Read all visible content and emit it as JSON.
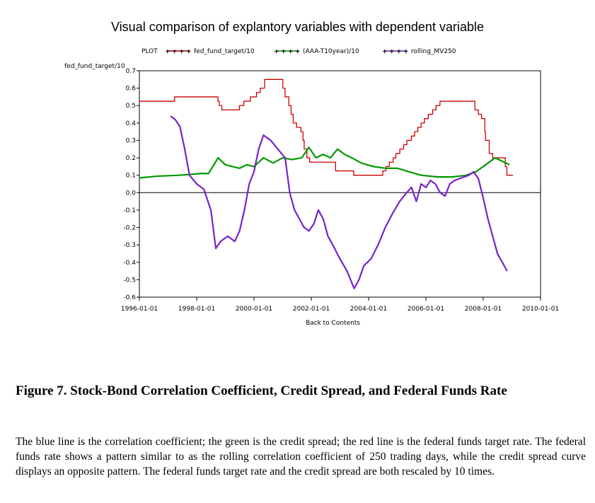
{
  "chart_data": {
    "type": "line",
    "title": "Visual comparison of explantory variables with dependent variable",
    "ylabel": "fed_fund_target/10",
    "xlabel": "Back to Contents",
    "ylim": [
      -0.6,
      0.7
    ],
    "xlim": [
      "1996-01-01",
      "2010-01-01"
    ],
    "y_ticks": [
      "0.7",
      "0.6",
      "0.5",
      "0.4",
      "0.3",
      "0.2",
      "0.1",
      "0.0",
      "-0.1",
      "-0.2",
      "-0.3",
      "-0.4",
      "-0.5",
      "-0.6"
    ],
    "x_ticks": [
      "1996-01-01",
      "1998-01-01",
      "2000-01-01",
      "2002-01-01",
      "2004-01-01",
      "2006-01-01",
      "2008-01-01",
      "2010-01-01"
    ],
    "legend_label": "PLOT",
    "legend_placement": "top",
    "zero_line": true,
    "series": [
      {
        "name": "fed_fund_target/10",
        "color": "#cc0000",
        "x": [
          "1996-01-01",
          "1997-03-25",
          "1998-09-29",
          "1998-10-15",
          "1998-11-17",
          "1999-06-30",
          "1999-08-24",
          "1999-11-16",
          "2000-02-02",
          "2000-03-21",
          "2000-05-16",
          "2001-01-03",
          "2001-01-31",
          "2001-03-20",
          "2001-04-18",
          "2001-05-15",
          "2001-06-27",
          "2001-08-21",
          "2001-09-17",
          "2001-10-02",
          "2001-11-06",
          "2001-12-11",
          "2002-11-06",
          "2003-06-25",
          "2004-06-30",
          "2004-08-10",
          "2004-09-21",
          "2004-11-10",
          "2004-12-14",
          "2005-02-02",
          "2005-03-22",
          "2005-05-03",
          "2005-06-30",
          "2005-08-09",
          "2005-09-20",
          "2005-11-01",
          "2005-12-13",
          "2006-01-31",
          "2006-03-28",
          "2006-05-10",
          "2006-06-29",
          "2007-09-18",
          "2007-10-31",
          "2007-12-11",
          "2008-01-22",
          "2008-01-30",
          "2008-03-18",
          "2008-04-30",
          "2008-10-08",
          "2008-10-29",
          "2008-12-16"
        ],
        "values": [
          0.525,
          0.55,
          0.525,
          0.5,
          0.475,
          0.5,
          0.525,
          0.55,
          0.575,
          0.6,
          0.65,
          0.6,
          0.55,
          0.5,
          0.45,
          0.4,
          0.375,
          0.35,
          0.3,
          0.25,
          0.2,
          0.175,
          0.125,
          0.1,
          0.125,
          0.15,
          0.175,
          0.2,
          0.225,
          0.25,
          0.275,
          0.3,
          0.325,
          0.35,
          0.375,
          0.4,
          0.425,
          0.45,
          0.475,
          0.5,
          0.525,
          0.475,
          0.45,
          0.425,
          0.35,
          0.3,
          0.225,
          0.2,
          0.15,
          0.1,
          0.1
        ]
      },
      {
        "name": "(AAA-T10year)/10",
        "color": "#009900",
        "x": [
          "1996-01-01",
          "1996-09-01",
          "1997-06-01",
          "1998-03-01",
          "1998-06-01",
          "1998-10-01",
          "1999-01-01",
          "1999-04-01",
          "1999-07-01",
          "1999-10-01",
          "2000-01-01",
          "2000-05-01",
          "2000-09-01",
          "2001-01-01",
          "2001-05-01",
          "2001-09-01",
          "2001-12-01",
          "2002-03-01",
          "2002-06-01",
          "2002-09-01",
          "2002-12-01",
          "2003-03-01",
          "2003-06-01",
          "2003-10-01",
          "2004-03-01",
          "2004-08-01",
          "2005-01-01",
          "2005-06-01",
          "2005-11-01",
          "2006-06-01",
          "2006-12-01",
          "2007-03-01",
          "2007-06-01",
          "2007-10-01",
          "2008-01-01",
          "2008-03-01",
          "2008-06-01",
          "2008-09-01",
          "2008-12-01"
        ],
        "values": [
          0.085,
          0.095,
          0.1,
          0.11,
          0.11,
          0.2,
          0.16,
          0.15,
          0.14,
          0.16,
          0.15,
          0.2,
          0.17,
          0.2,
          0.19,
          0.2,
          0.26,
          0.2,
          0.22,
          0.2,
          0.25,
          0.22,
          0.2,
          0.17,
          0.15,
          0.14,
          0.14,
          0.12,
          0.1,
          0.09,
          0.09,
          0.095,
          0.1,
          0.12,
          0.15,
          0.17,
          0.2,
          0.18,
          0.16
        ]
      },
      {
        "name": "rolling_MV250",
        "color": "#7722cc",
        "x": [
          "1997-02-01",
          "1997-04-01",
          "1997-06-01",
          "1997-08-01",
          "1997-10-01",
          "1998-01-01",
          "1998-04-01",
          "1998-07-01",
          "1998-09-01",
          "1998-11-01",
          "1999-02-01",
          "1999-05-01",
          "1999-07-01",
          "1999-09-01",
          "1999-11-01",
          "2000-01-01",
          "2000-03-01",
          "2000-05-01",
          "2000-08-01",
          "2000-11-01",
          "2001-02-01",
          "2001-04-01",
          "2001-06-01",
          "2001-08-01",
          "2001-10-01",
          "2001-12-01",
          "2002-02-01",
          "2002-04-01",
          "2002-06-01",
          "2002-08-01",
          "2002-10-01",
          "2003-01-01",
          "2003-04-01",
          "2003-07-01",
          "2003-09-01",
          "2003-11-01",
          "2004-02-01",
          "2004-05-01",
          "2004-08-01",
          "2004-11-01",
          "2005-02-01",
          "2005-05-01",
          "2005-07-01",
          "2005-09-01",
          "2005-11-01",
          "2006-01-01",
          "2006-03-01",
          "2006-05-01",
          "2006-07-01",
          "2006-09-01",
          "2006-11-01",
          "2007-01-01",
          "2007-03-01",
          "2007-05-01",
          "2007-07-01",
          "2007-09-01",
          "2007-11-01",
          "2008-01-01",
          "2008-03-01",
          "2008-05-01",
          "2008-07-01",
          "2008-09-01",
          "2008-11-01"
        ],
        "values": [
          0.44,
          0.42,
          0.38,
          0.25,
          0.1,
          0.05,
          0.02,
          -0.1,
          -0.32,
          -0.28,
          -0.25,
          -0.28,
          -0.22,
          -0.1,
          0.05,
          0.12,
          0.25,
          0.33,
          0.3,
          0.25,
          0.2,
          0.0,
          -0.1,
          -0.15,
          -0.2,
          -0.22,
          -0.18,
          -0.1,
          -0.15,
          -0.25,
          -0.3,
          -0.38,
          -0.45,
          -0.55,
          -0.5,
          -0.42,
          -0.38,
          -0.3,
          -0.2,
          -0.12,
          -0.05,
          0.0,
          0.03,
          -0.05,
          0.05,
          0.03,
          0.07,
          0.05,
          0.0,
          -0.02,
          0.05,
          0.07,
          0.08,
          0.09,
          0.1,
          0.12,
          0.08,
          -0.03,
          -0.15,
          -0.25,
          -0.35,
          -0.4,
          -0.45
        ]
      }
    ]
  },
  "caption": {
    "title": "Figure 7.  Stock-Bond Correlation Coefficient, Credit Spread, and Federal Funds Rate",
    "body": "The blue line is the correlation coefficient; the green is the credit spread; the red line is the federal funds target rate. The federal funds rate shows a pattern similar to  as  the rolling correlation coefficient of 250 trading days, while the credit spread curve displays an opposite pattern. The federal funds target rate and the credit spread are both rescaled by 10 times."
  }
}
